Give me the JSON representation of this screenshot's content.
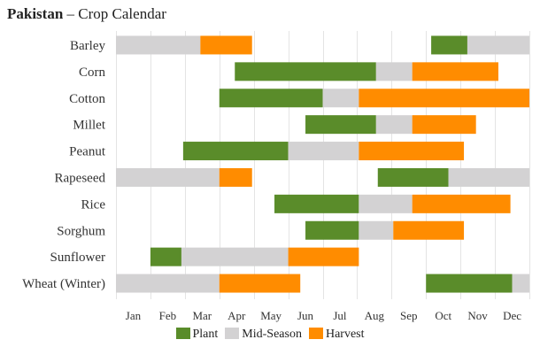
{
  "header": {
    "country": "Pakistan",
    "separator": "–",
    "subtitle": "Crop Calendar"
  },
  "colors": {
    "plant": "#5a8c2a",
    "mid_season": "#d3d2d3",
    "harvest": "#ff8c00",
    "grid": "#e4e4e4"
  },
  "legend": [
    {
      "key": "plant",
      "label": "Plant",
      "color": "#5a8c2a"
    },
    {
      "key": "mid_season",
      "label": "Mid-Season",
      "color": "#d3d2d3"
    },
    {
      "key": "harvest",
      "label": "Harvest",
      "color": "#ff8c00"
    }
  ],
  "chart_data": {
    "type": "bar",
    "x_unit": "month of year (1 = start of Jan, 13 = end of Dec)",
    "months": [
      "Jan",
      "Feb",
      "Mar",
      "Apr",
      "May",
      "Jun",
      "Jul",
      "Aug",
      "Sep",
      "Oct",
      "Nov",
      "Dec"
    ],
    "xlim": [
      1,
      13
    ],
    "crops": [
      {
        "name": "Barley",
        "segments": [
          {
            "phase": "mid_season",
            "start": 1.0,
            "end": 3.45
          },
          {
            "phase": "harvest",
            "start": 3.45,
            "end": 4.95
          },
          {
            "phase": "plant",
            "start": 10.15,
            "end": 11.2
          },
          {
            "phase": "mid_season",
            "start": 11.2,
            "end": 13.0
          }
        ]
      },
      {
        "name": "Corn",
        "segments": [
          {
            "phase": "plant",
            "start": 4.45,
            "end": 8.55
          },
          {
            "phase": "mid_season",
            "start": 8.55,
            "end": 9.6
          },
          {
            "phase": "harvest",
            "start": 9.6,
            "end": 12.1
          }
        ]
      },
      {
        "name": "Cotton",
        "segments": [
          {
            "phase": "plant",
            "start": 4.0,
            "end": 7.0
          },
          {
            "phase": "mid_season",
            "start": 7.0,
            "end": 8.05
          },
          {
            "phase": "harvest",
            "start": 8.05,
            "end": 13.0
          }
        ]
      },
      {
        "name": "Millet",
        "segments": [
          {
            "phase": "plant",
            "start": 6.5,
            "end": 8.55
          },
          {
            "phase": "mid_season",
            "start": 8.55,
            "end": 9.6
          },
          {
            "phase": "harvest",
            "start": 9.6,
            "end": 11.45
          }
        ]
      },
      {
        "name": "Peanut",
        "segments": [
          {
            "phase": "plant",
            "start": 2.95,
            "end": 6.0
          },
          {
            "phase": "mid_season",
            "start": 6.0,
            "end": 8.05
          },
          {
            "phase": "harvest",
            "start": 8.05,
            "end": 11.1
          }
        ]
      },
      {
        "name": "Rapeseed",
        "segments": [
          {
            "phase": "mid_season",
            "start": 1.0,
            "end": 4.0
          },
          {
            "phase": "harvest",
            "start": 4.0,
            "end": 4.95
          },
          {
            "phase": "plant",
            "start": 8.6,
            "end": 10.65
          },
          {
            "phase": "mid_season",
            "start": 10.65,
            "end": 13.0
          }
        ]
      },
      {
        "name": "Rice",
        "segments": [
          {
            "phase": "plant",
            "start": 5.6,
            "end": 8.05
          },
          {
            "phase": "mid_season",
            "start": 8.05,
            "end": 9.6
          },
          {
            "phase": "harvest",
            "start": 9.6,
            "end": 12.45
          }
        ]
      },
      {
        "name": "Sorghum",
        "segments": [
          {
            "phase": "plant",
            "start": 6.5,
            "end": 8.05
          },
          {
            "phase": "mid_season",
            "start": 8.05,
            "end": 9.05
          },
          {
            "phase": "harvest",
            "start": 9.05,
            "end": 11.1
          }
        ]
      },
      {
        "name": "Sunflower",
        "segments": [
          {
            "phase": "plant",
            "start": 2.0,
            "end": 2.9
          },
          {
            "phase": "mid_season",
            "start": 2.9,
            "end": 6.0
          },
          {
            "phase": "harvest",
            "start": 6.0,
            "end": 8.05
          }
        ]
      },
      {
        "name": "Wheat (Winter)",
        "segments": [
          {
            "phase": "mid_season",
            "start": 1.0,
            "end": 4.0
          },
          {
            "phase": "harvest",
            "start": 4.0,
            "end": 6.35
          },
          {
            "phase": "plant",
            "start": 10.0,
            "end": 12.5
          },
          {
            "phase": "mid_season",
            "start": 12.5,
            "end": 13.0
          }
        ]
      }
    ]
  }
}
